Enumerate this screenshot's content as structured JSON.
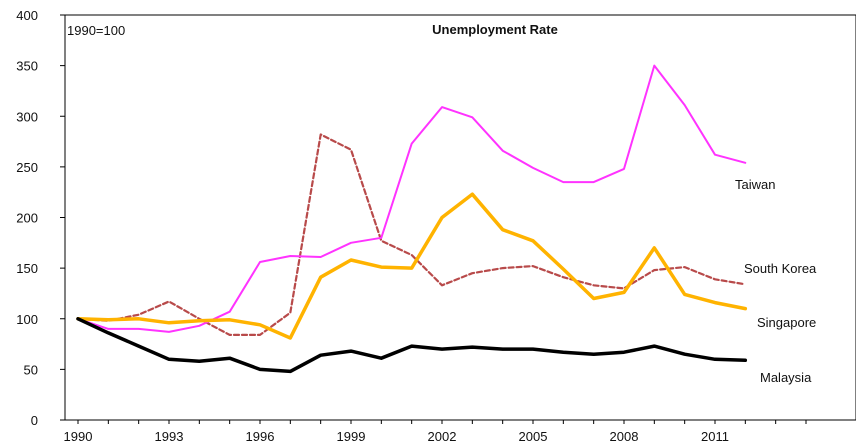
{
  "chart_data": {
    "type": "line",
    "title": "Unemployment Rate",
    "note": "1990=100",
    "x": [
      1990,
      1991,
      1992,
      1993,
      1994,
      1995,
      1996,
      1997,
      1998,
      1999,
      2000,
      2001,
      2002,
      2003,
      2004,
      2005,
      2006,
      2007,
      2008,
      2009,
      2010,
      2011,
      2012
    ],
    "xticks": [
      "1990",
      "1993",
      "1996",
      "1999",
      "2002",
      "2005",
      "2008",
      "2011"
    ],
    "xtick_values": [
      1990,
      1993,
      1996,
      1999,
      2002,
      2005,
      2008,
      2011
    ],
    "xlim": [
      1990,
      2014
    ],
    "ylim": [
      0,
      400
    ],
    "yticks": [
      "0",
      "50",
      "100",
      "150",
      "200",
      "250",
      "300",
      "350",
      "400"
    ],
    "ytick_values": [
      0,
      50,
      100,
      150,
      200,
      250,
      300,
      350,
      400
    ],
    "series": [
      {
        "name": "Taiwan",
        "color": "#ff33ff",
        "dash": false,
        "width": 2,
        "values": [
          100,
          90,
          90,
          87,
          93,
          107,
          156,
          162,
          161,
          175,
          180,
          273,
          309,
          299,
          266,
          249,
          235,
          235,
          248,
          350,
          311,
          262,
          254
        ]
      },
      {
        "name": "South Korea",
        "color": "#b84a4a",
        "dash": true,
        "width": 2.2,
        "values": [
          100,
          98,
          104,
          117,
          100,
          84,
          84,
          106,
          282,
          267,
          177,
          163,
          133,
          145,
          150,
          152,
          141,
          133,
          130,
          148,
          151,
          139,
          134
        ]
      },
      {
        "name": "Singapore",
        "color": "#ffb300",
        "dash": false,
        "width": 3.5,
        "values": [
          100,
          99,
          100,
          96,
          98,
          99,
          94,
          81,
          141,
          158,
          151,
          150,
          200,
          223,
          188,
          177,
          149,
          120,
          126,
          170,
          124,
          116,
          110
        ]
      },
      {
        "name": "Malaysia",
        "color": "#000000",
        "dash": false,
        "width": 3.5,
        "values": [
          100,
          86,
          73,
          60,
          58,
          61,
          50,
          48,
          64,
          68,
          61,
          73,
          70,
          72,
          70,
          70,
          67,
          65,
          67,
          73,
          65,
          60,
          59
        ]
      }
    ]
  }
}
